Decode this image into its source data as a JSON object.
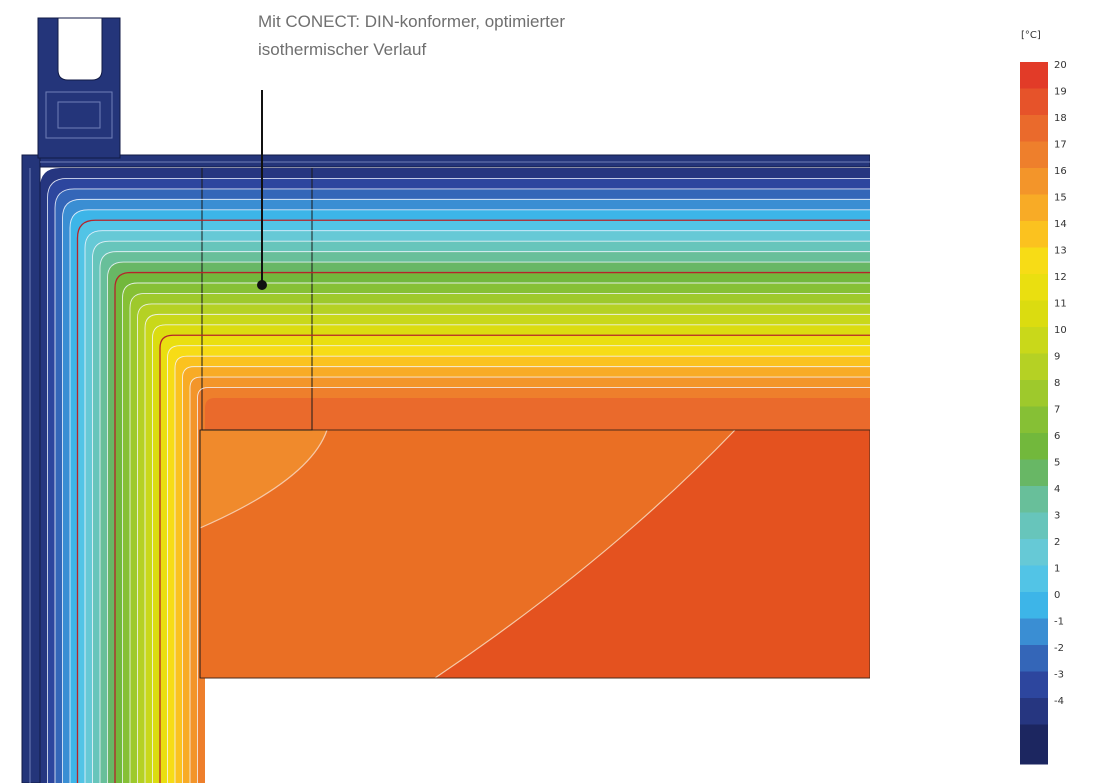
{
  "annotation": {
    "line1": "Mit CONECT: DIN-konformer, optimierter",
    "line2": "isothermischer Verlauf"
  },
  "legend": {
    "unit": "[°C]",
    "scale": [
      {
        "label": "20",
        "color": "#e23b28"
      },
      {
        "label": "19",
        "color": "#e6532a"
      },
      {
        "label": "18",
        "color": "#ea6a2c"
      },
      {
        "label": "17",
        "color": "#ee7f2c"
      },
      {
        "label": "16",
        "color": "#f3952a"
      },
      {
        "label": "15",
        "color": "#f8ab26"
      },
      {
        "label": "14",
        "color": "#fbc21f"
      },
      {
        "label": "13",
        "color": "#f7dc16"
      },
      {
        "label": "12",
        "color": "#eadf10"
      },
      {
        "label": "11",
        "color": "#dbdc10"
      },
      {
        "label": "10",
        "color": "#c9d81a"
      },
      {
        "label": "9",
        "color": "#b5d124"
      },
      {
        "label": "8",
        "color": "#9ec92c"
      },
      {
        "label": "7",
        "color": "#86c035"
      },
      {
        "label": "6",
        "color": "#72b83c"
      },
      {
        "label": "5",
        "color": "#68b765"
      },
      {
        "label": "4",
        "color": "#68bf9a"
      },
      {
        "label": "3",
        "color": "#67c5bb"
      },
      {
        "label": "2",
        "color": "#66c9d6"
      },
      {
        "label": "1",
        "color": "#52c4e6"
      },
      {
        "label": "0",
        "color": "#3db5e8"
      },
      {
        "label": "-1",
        "color": "#3a8ed3"
      },
      {
        "label": "-2",
        "color": "#3466b8"
      },
      {
        "label": "-3",
        "color": "#2d469e"
      },
      {
        "label": "-4",
        "color": "#263680"
      }
    ]
  },
  "colors": {
    "frame": "#24357a",
    "frame_outline": "#111a45",
    "isotherm_white": "#f4f7ff",
    "isotherm_red": "#b5242a",
    "wall_orange": "#ea6f24",
    "wall_red": "#e4521f",
    "wall_light": "#f08a2c"
  }
}
